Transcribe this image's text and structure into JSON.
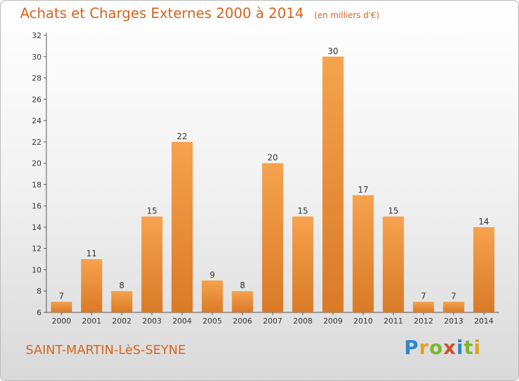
{
  "title": "Achats et Charges Externes 2000 à 2014",
  "unit": "(en milliers d'€)",
  "location": "SAINT-MARTIN-LèS-SEYNE",
  "brand": {
    "letters": [
      "P",
      "r",
      "o",
      "x",
      "i",
      "t",
      "i"
    ]
  },
  "colors": {
    "bar_light": "#f6a24e",
    "bar_dark": "#d97a26",
    "accent": "#d8641c"
  },
  "chart_data": {
    "type": "bar",
    "categories": [
      "2000",
      "2001",
      "2002",
      "2003",
      "2004",
      "2005",
      "2006",
      "2007",
      "2008",
      "2009",
      "2010",
      "2011",
      "2012",
      "2013",
      "2014"
    ],
    "values": [
      7,
      11,
      8,
      15,
      22,
      9,
      8,
      20,
      15,
      30,
      17,
      15,
      7,
      7,
      14
    ],
    "ylim": [
      6,
      32
    ],
    "yticks": [
      6,
      8,
      10,
      12,
      14,
      16,
      18,
      20,
      22,
      24,
      26,
      28,
      30,
      32
    ],
    "grid": false,
    "data_labels": true
  }
}
